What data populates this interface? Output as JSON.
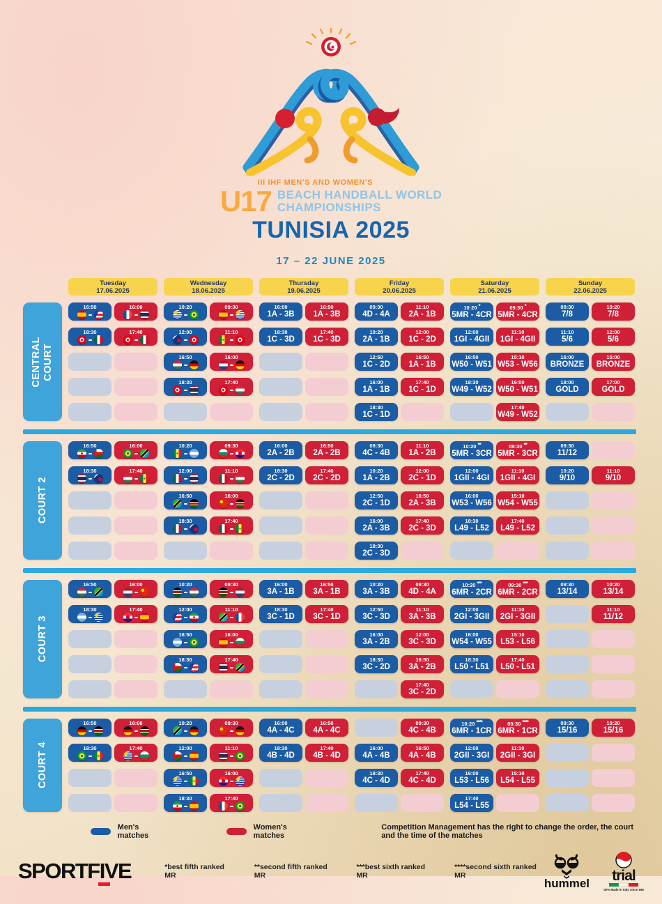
{
  "header": {
    "line1": "III IHF MEN'S AND WOMEN'S",
    "u17": "U17",
    "line2a": "BEACH HANDBALL WORLD",
    "line2b": "CHAMPIONSHIPS",
    "title": "TUNISIA 2025",
    "dates": "17 – 22 JUNE 2025"
  },
  "days": [
    {
      "name": "Tuesday",
      "date": "17.06.2025"
    },
    {
      "name": "Wednesday",
      "date": "18.06.2025"
    },
    {
      "name": "Thursday",
      "date": "19.06.2025"
    },
    {
      "name": "Friday",
      "date": "20.06.2025"
    },
    {
      "name": "Saturday",
      "date": "21.06.2025"
    },
    {
      "name": "Sunday",
      "date": "22.06.2025"
    }
  ],
  "flags": {
    "ESP": "Spain",
    "PUR": "Puerto Rico",
    "FRA": "France",
    "THA": "Thailand",
    "URU": "Uruguay",
    "BRA": "Brazil",
    "TUN": "Tunisia",
    "MEX": "Mexico",
    "NZL": "New Zealand",
    "SEN": "Senegal",
    "HUN": "Hungary",
    "GER": "Germany",
    "NED": "Netherlands",
    "IRI": "Iran",
    "OMA": "Oman",
    "TAN": "Tanzania",
    "ARG": "Argentina",
    "BUL": "Bulgaria",
    "CRO": "Croatia",
    "KEN": "Kenya",
    "CHN": "China"
  },
  "colors": {
    "men": "#1c5ca4",
    "women": "#cf2038",
    "header_yellow": "#f8d44c",
    "court_blue": "#3ea4d9",
    "divider_blue": "#2ba9e1"
  },
  "courts": [
    {
      "name": "CENTRAL\nCOURT",
      "rows": [
        [
          {
            "t": "16:50",
            "f": [
              "ESP",
              "PUR"
            ]
          },
          {
            "t": "16:00",
            "f": [
              "FRA",
              "THA"
            ]
          },
          {
            "t": "10:20",
            "f": [
              "URU",
              "BRA"
            ]
          },
          {
            "t": "09:30",
            "f": [
              "ESP",
              "URU"
            ]
          },
          {
            "t": "16:00",
            "c": "1A - 3B"
          },
          {
            "t": "16:50",
            "c": "1A - 3B"
          },
          {
            "t": "09:30",
            "c": "4D - 4A"
          },
          {
            "t": "11:10",
            "c": "2A - 1B"
          },
          {
            "t": "10:20",
            "c": "5MR - 4CR",
            "s": "*"
          },
          {
            "t": "09:30",
            "c": "5MR - 4CR",
            "s": "*"
          },
          {
            "t": "09:30",
            "c": "7/8"
          },
          {
            "t": "10:20",
            "c": "7/8"
          }
        ],
        [
          {
            "t": "18:30",
            "f": [
              "TUN",
              "MEX"
            ]
          },
          {
            "t": "17:40",
            "f": [
              "TUN",
              "MEX"
            ]
          },
          {
            "t": "12:00",
            "f": [
              "NZL",
              "TUN"
            ]
          },
          {
            "t": "11:10",
            "f": [
              "SEN",
              "TUN"
            ]
          },
          {
            "t": "18:30",
            "c": "1C - 3D"
          },
          {
            "t": "17:40",
            "c": "1C - 3D"
          },
          {
            "t": "10:20",
            "c": "2A - 1B"
          },
          {
            "t": "12:00",
            "c": "1C - 2D"
          },
          {
            "t": "12:00",
            "c": "1GI - 4GII"
          },
          {
            "t": "11:10",
            "c": "1GI - 4GII"
          },
          {
            "t": "11:10",
            "c": "5/6"
          },
          {
            "t": "12:00",
            "c": "5/6"
          }
        ],
        [
          null,
          null,
          {
            "t": "16:50",
            "f": [
              "HUN",
              "GER"
            ]
          },
          {
            "t": "16:00",
            "f": [
              "NED",
              "GER"
            ]
          },
          null,
          null,
          {
            "t": "12:50",
            "c": "1C - 2D"
          },
          {
            "t": "16:50",
            "c": "1A - 1B"
          },
          {
            "t": "16:50",
            "c": "W50 - W51"
          },
          {
            "t": "15:10",
            "c": "W53 - W56"
          },
          {
            "t": "16:00",
            "c": "BRONZE"
          },
          {
            "t": "15:00",
            "c": "BRONZE"
          }
        ],
        [
          null,
          null,
          {
            "t": "18:30",
            "f": [
              "TUN",
              "THA"
            ]
          },
          {
            "t": "17:40",
            "f": [
              "TUN",
              "HUN"
            ]
          },
          null,
          null,
          {
            "t": "16:00",
            "c": "1A - 1B"
          },
          {
            "t": "17:40",
            "c": "1C - 1D"
          },
          {
            "t": "18:30",
            "c": "W49 - W52"
          },
          {
            "t": "16:00",
            "c": "W50 - W51"
          },
          {
            "t": "18:00",
            "c": "GOLD"
          },
          {
            "t": "17:00",
            "c": "GOLD"
          }
        ],
        [
          null,
          null,
          null,
          null,
          null,
          null,
          {
            "t": "18:30",
            "c": "1C - 1D"
          },
          null,
          null,
          {
            "t": "17:40",
            "c": "W49 - W52"
          },
          null,
          null
        ]
      ]
    },
    {
      "name": "COURT 2",
      "rows": [
        [
          {
            "t": "16:50",
            "f": [
              "IRI",
              "OMA"
            ]
          },
          {
            "t": "16:00",
            "f": [
              "BRA",
              "TAN"
            ]
          },
          {
            "t": "10:20",
            "f": [
              "SEN",
              "ARG"
            ]
          },
          {
            "t": "09:30",
            "f": [
              "BUL",
              "CRO"
            ]
          },
          {
            "t": "16:00",
            "c": "2A - 2B"
          },
          {
            "t": "16:50",
            "c": "2A - 2B"
          },
          {
            "t": "09:30",
            "c": "4C - 4B"
          },
          {
            "t": "11:10",
            "c": "1A - 2B"
          },
          {
            "t": "10:20",
            "c": "5MR - 3CR",
            "s": "**"
          },
          {
            "t": "09:30",
            "c": "5MR - 3CR",
            "s": "**"
          },
          {
            "t": "09:30",
            "c": "11/12"
          },
          null
        ],
        [
          {
            "t": "18:30",
            "f": [
              "THA",
              "NZL"
            ]
          },
          {
            "t": "17:40",
            "f": [
              "HUN",
              "SEN"
            ]
          },
          {
            "t": "12:00",
            "f": [
              "MEX",
              "THA"
            ]
          },
          {
            "t": "11:10",
            "f": [
              "MEX",
              "HUN"
            ]
          },
          {
            "t": "18:30",
            "c": "2C - 2D"
          },
          {
            "t": "17:40",
            "c": "2C - 2D"
          },
          {
            "t": "10:20",
            "c": "1A - 2B"
          },
          {
            "t": "12:00",
            "c": "2C - 1D"
          },
          {
            "t": "12:00",
            "c": "1GII - 4GI"
          },
          {
            "t": "11:10",
            "c": "1GII - 4GI"
          },
          {
            "t": "10:20",
            "c": "9/10"
          },
          {
            "t": "11:10",
            "c": "9/10"
          }
        ],
        [
          null,
          null,
          {
            "t": "16:50",
            "f": [
              "TAN",
              "KEN"
            ]
          },
          {
            "t": "16:00",
            "f": [
              "CHN",
              "KEN"
            ]
          },
          null,
          null,
          {
            "t": "12:50",
            "c": "2C - 1D"
          },
          {
            "t": "16:50",
            "c": "2A - 3B"
          },
          {
            "t": "16:00",
            "c": "W53 - W56"
          },
          {
            "t": "15:10",
            "c": "W54 - W55"
          },
          null,
          null
        ],
        [
          null,
          null,
          {
            "t": "18:30",
            "f": [
              "MEX",
              "NZL"
            ]
          },
          {
            "t": "17:40",
            "f": [
              "MEX",
              "SEN"
            ]
          },
          null,
          null,
          {
            "t": "16:00",
            "c": "2A - 3B"
          },
          {
            "t": "17:40",
            "c": "2C - 3D"
          },
          {
            "t": "18:30",
            "c": "L49 - L52"
          },
          {
            "t": "17:40",
            "c": "L49 - L52"
          },
          null,
          null
        ],
        [
          null,
          null,
          null,
          null,
          null,
          null,
          {
            "t": "18:30",
            "c": "2C - 3D"
          },
          null,
          null,
          null,
          null,
          null
        ]
      ]
    },
    {
      "name": "COURT 3",
      "rows": [
        [
          {
            "t": "16:50",
            "f": [
              "HUN",
              "TAN"
            ]
          },
          {
            "t": "16:00",
            "f": [
              "NED",
              "CHN"
            ]
          },
          {
            "t": "10:20",
            "f": [
              "KEN",
              "HUN"
            ]
          },
          {
            "t": "09:30",
            "f": [
              "KEN",
              "NED"
            ]
          },
          {
            "t": "16:00",
            "c": "3A - 1B"
          },
          {
            "t": "16:50",
            "c": "3A - 1B"
          },
          {
            "t": "10:20",
            "c": "3A - 3B"
          },
          {
            "t": "09:30",
            "c": "4D - 4A"
          },
          {
            "t": "10:20",
            "c": "6MR - 2CR",
            "s": "***"
          },
          {
            "t": "09:30",
            "c": "6MR - 2CR",
            "s": "***"
          },
          {
            "t": "09:30",
            "c": "13/14"
          },
          {
            "t": "10:20",
            "c": "13/14"
          }
        ],
        [
          {
            "t": "18:30",
            "f": [
              "ARG",
              "URU"
            ]
          },
          {
            "t": "17:40",
            "f": [
              "CRO",
              "ESP"
            ]
          },
          {
            "t": "12:00",
            "f": [
              "PUR",
              "IRI"
            ]
          },
          {
            "t": "11:10",
            "f": [
              "TAN",
              "FRA"
            ]
          },
          {
            "t": "18:30",
            "c": "3C - 1D"
          },
          {
            "t": "17:40",
            "c": "3C - 1D"
          },
          {
            "t": "12:50",
            "c": "3C - 3D"
          },
          {
            "t": "11:10",
            "c": "3A - 3B"
          },
          {
            "t": "12:00",
            "c": "2GI - 3GII"
          },
          {
            "t": "11:10",
            "c": "2GI - 3GII"
          },
          null,
          {
            "t": "11:10",
            "c": "11/12"
          }
        ],
        [
          null,
          null,
          {
            "t": "16:50",
            "f": [
              "ARG",
              "BRA"
            ]
          },
          {
            "t": "16:00",
            "f": [
              "ESP",
              "BUL"
            ]
          },
          null,
          null,
          {
            "t": "16:00",
            "c": "3A - 2B"
          },
          {
            "t": "12:00",
            "c": "3C - 3D"
          },
          {
            "t": "16:00",
            "c": "W54 - W55"
          },
          {
            "t": "15:10",
            "c": "L53 - L56"
          },
          null,
          null
        ],
        [
          null,
          null,
          {
            "t": "18:30",
            "f": [
              "OMA",
              "PUR"
            ]
          },
          {
            "t": "17:40",
            "f": [
              "THA",
              "TAN"
            ]
          },
          null,
          null,
          {
            "t": "18:30",
            "c": "3C - 2D"
          },
          {
            "t": "16:50",
            "c": "3A - 2B"
          },
          {
            "t": "18:30",
            "c": "L50 - L51"
          },
          {
            "t": "17:40",
            "c": "L50 - L51"
          },
          null,
          null
        ],
        [
          null,
          null,
          null,
          null,
          null,
          null,
          null,
          {
            "t": "17:40",
            "c": "3C - 2D"
          },
          null,
          null,
          null,
          null
        ]
      ]
    },
    {
      "name": "COURT 4",
      "rows": [
        [
          {
            "t": "16:50",
            "f": [
              "GER",
              "KEN"
            ]
          },
          {
            "t": "16:00",
            "f": [
              "GER",
              "KEN"
            ]
          },
          {
            "t": "10:20",
            "f": [
              "TAN",
              "GER"
            ]
          },
          {
            "t": "09:30",
            "f": [
              "CHN",
              "GER"
            ]
          },
          {
            "t": "16:00",
            "c": "4A - 4C"
          },
          {
            "t": "16:50",
            "c": "4A - 4C"
          },
          null,
          {
            "t": "09:30",
            "c": "4C - 4B"
          },
          {
            "t": "10:20",
            "c": "6MR - 1CR",
            "s": "****"
          },
          {
            "t": "09:30",
            "c": "6MR - 1CR",
            "s": "****"
          },
          {
            "t": "09:30",
            "c": "15/16"
          },
          {
            "t": "10:20",
            "c": "15/16"
          }
        ],
        [
          {
            "t": "18:30",
            "f": [
              "BRA",
              "SEN"
            ]
          },
          {
            "t": "17:40",
            "f": [
              "URU",
              "BUL"
            ]
          },
          {
            "t": "12:00",
            "f": [
              "OMA",
              "ESP"
            ]
          },
          {
            "t": "11:10",
            "f": [
              "THA",
              "BRA"
            ]
          },
          {
            "t": "18:30",
            "c": "4B - 4D"
          },
          {
            "t": "17:40",
            "c": "4B - 4D"
          },
          {
            "t": "16:00",
            "c": "4A - 4B"
          },
          {
            "t": "16:50",
            "c": "4A - 4B"
          },
          {
            "t": "12:00",
            "c": "2GII - 3GI"
          },
          {
            "t": "11:10",
            "c": "2GII - 3GI"
          },
          null,
          null
        ],
        [
          null,
          null,
          {
            "t": "16:50",
            "f": [
              "URU",
              "SEN"
            ]
          },
          {
            "t": "16:00",
            "f": [
              "CRO",
              "URU"
            ]
          },
          null,
          null,
          {
            "t": "18:30",
            "c": "4C - 4D"
          },
          {
            "t": "17:40",
            "c": "4C - 4D"
          },
          {
            "t": "16:00",
            "c": "L53 - L56"
          },
          {
            "t": "15:10",
            "c": "L54 - L55"
          },
          null,
          null
        ],
        [
          null,
          null,
          {
            "t": "18:30",
            "f": [
              "IRI",
              "ESP"
            ]
          },
          {
            "t": "17:40",
            "f": [
              "FRA",
              "BRA"
            ]
          },
          null,
          null,
          null,
          null,
          {
            "t": "17:40",
            "c": "L54 - L55"
          },
          null,
          null,
          null
        ]
      ]
    }
  ],
  "legend": {
    "men": "Men's matches",
    "women": "Women's matches",
    "disclaimer": "Competition Management has the right to change the order, the court and the time of the matches"
  },
  "footnotes": [
    "*best fifth ranked MR",
    "**second fifth ranked MR",
    "***best sixth ranked MR",
    "****second sixth ranked MR"
  ],
  "footer": {
    "sportfive": "SPORTFIVE",
    "hummel": "hummel",
    "trial": "trial",
    "trial_caption": "100% Made in Italy since 1984"
  }
}
